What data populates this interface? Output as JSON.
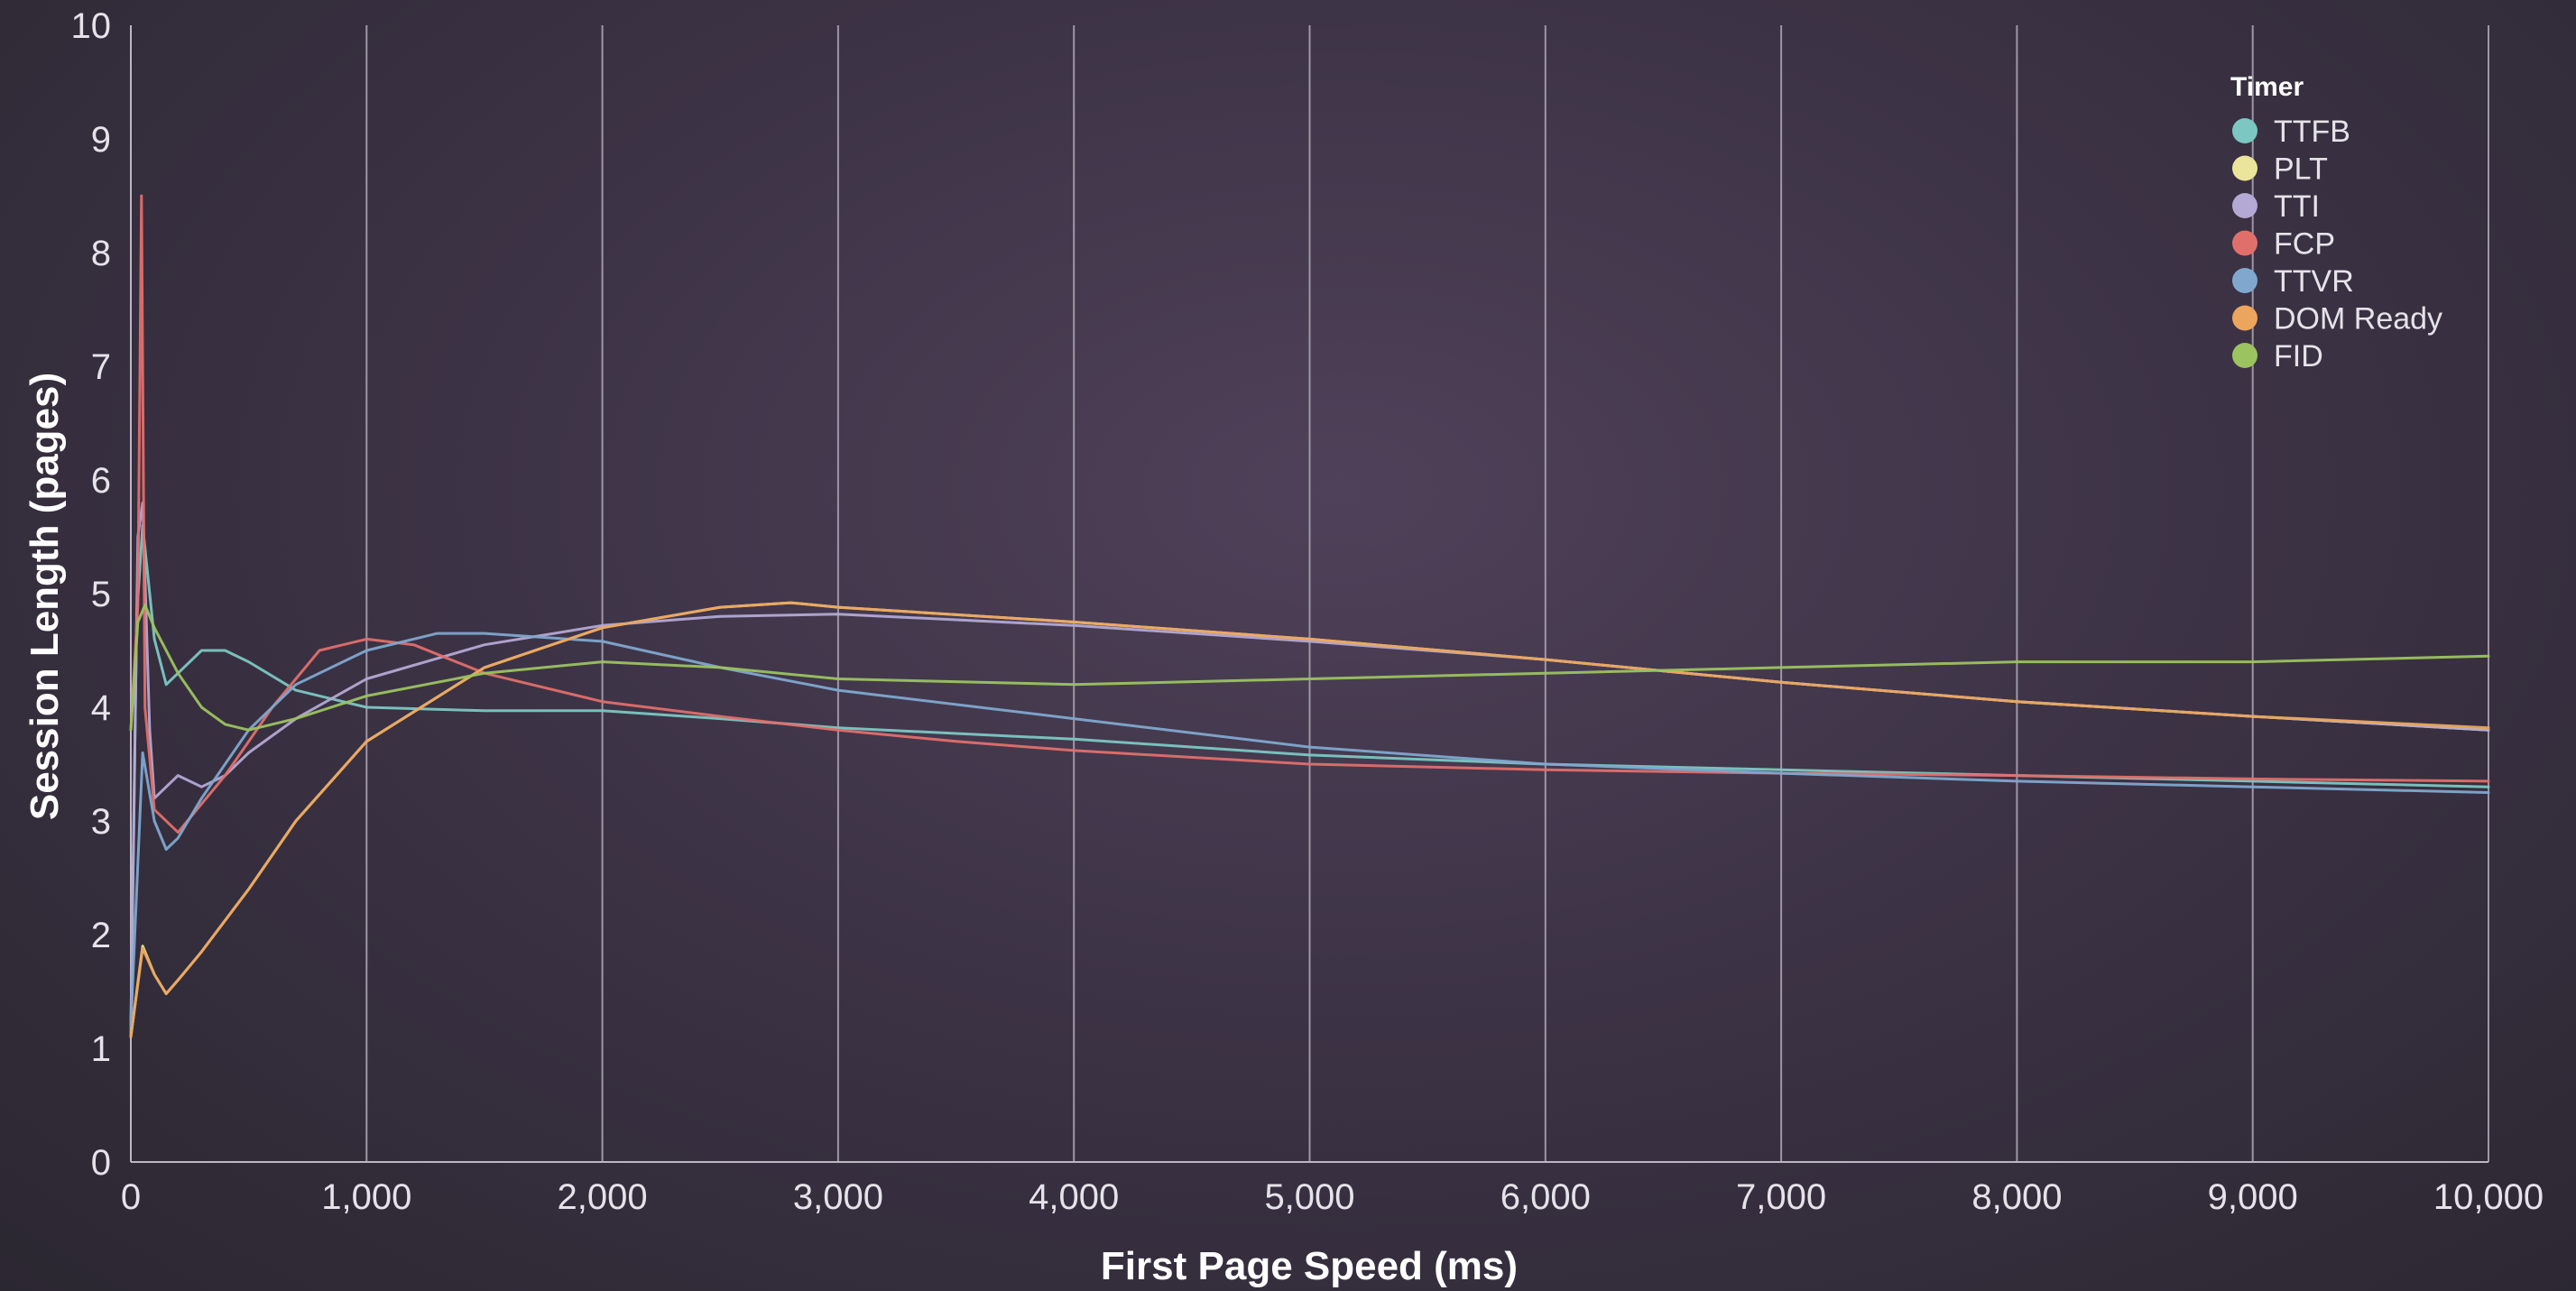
{
  "chart_data": {
    "type": "line",
    "title": "",
    "xlabel": "First Page Speed (ms)",
    "ylabel": "Session Length (pages)",
    "xlim": [
      0,
      10000
    ],
    "ylim": [
      0,
      10
    ],
    "x_ticks": [
      "0",
      "1,000",
      "2,000",
      "3,000",
      "4,000",
      "5,000",
      "6,000",
      "7,000",
      "8,000",
      "9,000",
      "10,000"
    ],
    "y_ticks": [
      "0",
      "1",
      "2",
      "3",
      "4",
      "5",
      "6",
      "7",
      "8",
      "9",
      "10"
    ],
    "grid": "vertical",
    "legend": {
      "title": "Timer",
      "position": "top-right"
    },
    "series": [
      {
        "name": "TTFB",
        "color": "#7cc7c2",
        "x": [
          0,
          25,
          50,
          100,
          150,
          200,
          300,
          400,
          500,
          700,
          1000,
          1500,
          2000,
          2500,
          3000,
          4000,
          5000,
          6000,
          7000,
          8000,
          9000,
          10000
        ],
        "values": [
          1.1,
          4.8,
          5.6,
          4.6,
          4.2,
          4.3,
          4.5,
          4.5,
          4.4,
          4.15,
          4.0,
          3.97,
          3.97,
          3.9,
          3.82,
          3.72,
          3.58,
          3.5,
          3.45,
          3.4,
          3.35,
          3.3
        ]
      },
      {
        "name": "PLT",
        "color": "#eae59a",
        "x": [
          0,
          50,
          100,
          150,
          200,
          300,
          500,
          700,
          1000,
          1500,
          2000,
          2500,
          2800,
          3000,
          4000,
          5000,
          6000,
          7000,
          8000,
          9000,
          10000
        ],
        "values": [
          1.1,
          1.9,
          1.65,
          1.48,
          1.6,
          1.85,
          2.4,
          3.0,
          3.7,
          4.35,
          4.7,
          4.88,
          4.92,
          4.88,
          4.75,
          4.6,
          4.42,
          4.22,
          4.05,
          3.92,
          3.8
        ]
      },
      {
        "name": "TTI",
        "color": "#b3a9d4",
        "x": [
          0,
          30,
          50,
          80,
          100,
          150,
          200,
          300,
          400,
          500,
          700,
          1000,
          1500,
          2000,
          2500,
          3000,
          4000,
          5000,
          6000,
          7000,
          8000,
          9000,
          10000
        ],
        "values": [
          1.2,
          5.5,
          5.8,
          3.8,
          3.2,
          3.3,
          3.4,
          3.3,
          3.4,
          3.6,
          3.9,
          4.25,
          4.55,
          4.72,
          4.8,
          4.82,
          4.72,
          4.58,
          4.42,
          4.22,
          4.05,
          3.92,
          3.8
        ]
      },
      {
        "name": "FCP",
        "color": "#e06f6c",
        "x": [
          0,
          30,
          45,
          60,
          100,
          200,
          400,
          600,
          800,
          1000,
          1200,
          1500,
          2000,
          2500,
          3000,
          3500,
          4000,
          5000,
          6000,
          7000,
          8000,
          9000,
          10000
        ],
        "values": [
          3.8,
          4.9,
          8.5,
          4.0,
          3.1,
          2.9,
          3.4,
          4.0,
          4.5,
          4.6,
          4.55,
          4.3,
          4.05,
          3.92,
          3.8,
          3.7,
          3.62,
          3.5,
          3.45,
          3.42,
          3.4,
          3.37,
          3.35
        ]
      },
      {
        "name": "TTVR",
        "color": "#80a8cf",
        "x": [
          0,
          50,
          100,
          150,
          200,
          300,
          500,
          700,
          1000,
          1300,
          1500,
          2000,
          2500,
          3000,
          4000,
          5000,
          6000,
          7000,
          8000,
          9000,
          10000
        ],
        "values": [
          1.2,
          3.6,
          3.0,
          2.75,
          2.85,
          3.2,
          3.8,
          4.2,
          4.5,
          4.65,
          4.65,
          4.58,
          4.35,
          4.15,
          3.9,
          3.65,
          3.5,
          3.42,
          3.35,
          3.3,
          3.25
        ]
      },
      {
        "name": "DOM Ready",
        "color": "#eba55d",
        "x": [
          0,
          50,
          100,
          150,
          200,
          300,
          500,
          700,
          1000,
          1500,
          2000,
          2500,
          2800,
          3000,
          4000,
          5000,
          6000,
          7000,
          8000,
          9000,
          10000
        ],
        "values": [
          1.1,
          1.88,
          1.65,
          1.48,
          1.6,
          1.85,
          2.4,
          3.0,
          3.7,
          4.35,
          4.7,
          4.88,
          4.92,
          4.88,
          4.75,
          4.6,
          4.42,
          4.22,
          4.05,
          3.92,
          3.82
        ]
      },
      {
        "name": "FID",
        "color": "#9bc35f",
        "x": [
          0,
          30,
          60,
          100,
          200,
          300,
          400,
          500,
          700,
          1000,
          1500,
          2000,
          2500,
          3000,
          4000,
          5000,
          6000,
          7000,
          8000,
          9000,
          10000
        ],
        "values": [
          3.8,
          4.75,
          4.9,
          4.7,
          4.3,
          4.0,
          3.85,
          3.8,
          3.9,
          4.1,
          4.3,
          4.4,
          4.35,
          4.25,
          4.2,
          4.25,
          4.3,
          4.35,
          4.4,
          4.4,
          4.45
        ]
      }
    ]
  }
}
